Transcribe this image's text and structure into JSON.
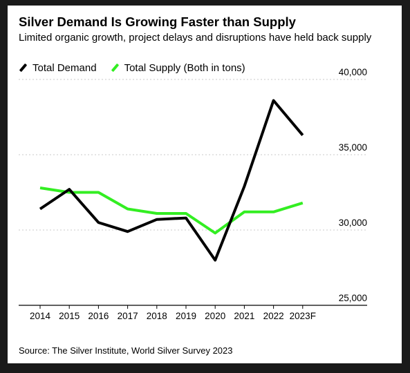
{
  "title": "Silver Demand Is Growing Faster than Supply",
  "subtitle": "Limited organic growth, project delays and disruptions have held back supply",
  "source": "Source: The Silver Institute, World Silver Survey 2023",
  "colors": {
    "demand": "#000000",
    "supply": "#33ee22",
    "grid": "#c8c8c8",
    "background": "#ffffff",
    "frame": "#1a1a1a"
  },
  "chart_data": {
    "type": "line",
    "categories": [
      "2014",
      "2015",
      "2016",
      "2017",
      "2018",
      "2019",
      "2020",
      "2021",
      "2022",
      "2023F"
    ],
    "series": [
      {
        "name": "Total Demand",
        "color": "#000000",
        "values": [
          31400,
          32700,
          30500,
          29900,
          30700,
          30800,
          28000,
          32900,
          38600,
          36300
        ]
      },
      {
        "name": "Total Supply (Both in tons)",
        "color": "#33ee22",
        "values": [
          32800,
          32500,
          32500,
          31400,
          31100,
          31100,
          29800,
          31200,
          31200,
          31800
        ]
      }
    ],
    "yticks": [
      "25,000",
      "30,000",
      "35,000",
      "40,000"
    ],
    "ylim": [
      25000,
      40000
    ],
    "grid": "horizontal-dotted",
    "y_axis_position": "right",
    "legend_placement": "top-left"
  }
}
